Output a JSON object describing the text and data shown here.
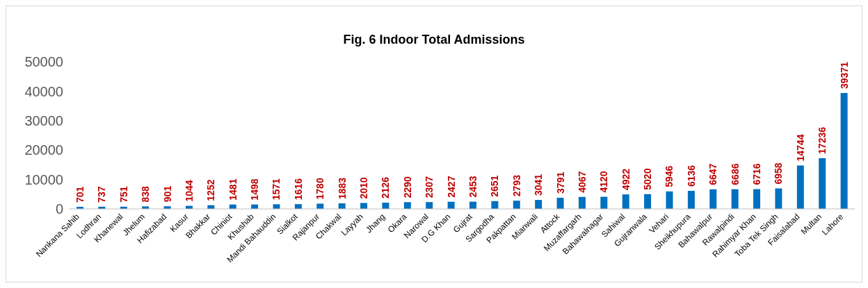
{
  "chart_data": {
    "type": "bar",
    "title": "Fig. 6 Indoor Total Admissions",
    "categories": [
      "Nankana Sahib",
      "Lodhran",
      "Khanewal",
      "Jhelum",
      "Hafizabad",
      "Kasur",
      "Bhakkar",
      "Chiniot",
      "Khushab",
      "Mandi Bahauddin",
      "Sialkot",
      "Rajanpur",
      "Chakwal",
      "Layyah",
      "Jhang",
      "Okara",
      "Narowal",
      "D.G Khan",
      "Gujrat",
      "Sargodha",
      "Pakpattan",
      "Mianwali",
      "Attock",
      "Muzaffargarh",
      "Bahawalnagar",
      "Sahiwal",
      "Gujranwala",
      "Vehari",
      "Sheikhupura",
      "Bahawalpur",
      "Rawalpindi",
      "Rahimyar Khan",
      "Toba Tek Singh",
      "Faisalabad",
      "Multan",
      "Lahore"
    ],
    "values": [
      701,
      737,
      751,
      838,
      901,
      1044,
      1252,
      1481,
      1498,
      1571,
      1616,
      1780,
      1883,
      2010,
      2126,
      2290,
      2307,
      2427,
      2453,
      2651,
      2793,
      3041,
      3791,
      4067,
      4120,
      4922,
      5020,
      5946,
      6136,
      6647,
      6686,
      6716,
      6958,
      14744,
      17236,
      39371
    ],
    "color": "#0070c0",
    "ylim": [
      0,
      50000
    ],
    "yticks": [
      0,
      10000,
      20000,
      30000,
      40000,
      50000
    ],
    "grid": false,
    "legend": false,
    "data_labels": true
  }
}
